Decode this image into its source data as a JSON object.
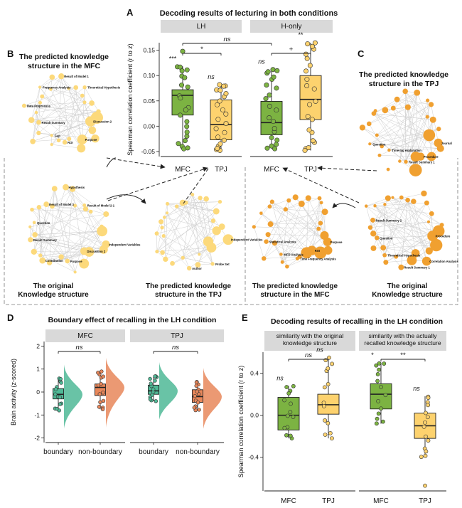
{
  "panels": {
    "A": {
      "letter": "A",
      "title": "Decoding results of lecturing in both conditions"
    },
    "B": {
      "letter": "B",
      "title_line1": "The predicted knowledge",
      "title_line2": "structure in the MFC",
      "orig_line1": "The original",
      "orig_line2": "Knowledge structure",
      "tpj_line1": "The predicted knowledge",
      "tpj_line2": "structure in the TPJ"
    },
    "C": {
      "letter": "C",
      "title_line1": "The predicted knowledge",
      "title_line2": "structure in the TPJ",
      "mfc_line1": "The predicted knowledge",
      "mfc_line2": "structure in the MFC",
      "orig_line1": "The original",
      "orig_line2": "Knowledge structure"
    },
    "D": {
      "letter": "D",
      "title": "Boundary effect of recalling in the LH condition"
    },
    "E": {
      "letter": "E",
      "title": "Decoding results of recalling in the LH condition"
    }
  },
  "network_labels": {
    "b_mfc": [
      "Discussion 2",
      "Purpose",
      "ROI",
      "Gap",
      "Result Summary",
      "Data Preprocess",
      "Frequency Analysis",
      "Result of Model 1",
      "Theoretical Hypothesis"
    ],
    "b_orig": [
      "Independent Variables",
      "Discussion 2",
      "Purpose",
      "Contribution",
      "Result Summary",
      "Question",
      "Result of Model 3",
      "Hypothesis",
      "Result of Model 2-1"
    ],
    "b_tpj": [
      "Independent Variables",
      "Probe Set",
      "Author"
    ],
    "c_tpj": [
      "Journal",
      "Procedure",
      "Result Summary 1",
      "Time-lag explanation",
      "Question"
    ],
    "c_mfc": [
      "Purpose",
      "ROI",
      "Time Frequency Analysis",
      "MFD Analysis",
      "Statistical Analysis"
    ],
    "c_orig": [
      "Procedure",
      "Correlation Analysis",
      "Result Summary 1",
      "Theoretical Hypothesis",
      "Question",
      "Result Summary 2"
    ]
  },
  "chart_data": [
    {
      "id": "A",
      "type": "box",
      "title": "Decoding results of lecturing in both conditions",
      "facets": [
        "LH",
        "H-only"
      ],
      "categories": [
        "MFC",
        "TPJ",
        "MFC",
        "TPJ"
      ],
      "ylabel": "Spearman correlation coefficient (r to z)",
      "ylim": [
        -0.06,
        0.165
      ],
      "yticks": [
        "-0.05",
        "0.00",
        "0.05",
        "0.10",
        "0.15"
      ],
      "yticks_values": [
        -0.05,
        0.0,
        0.05,
        0.1,
        0.15
      ],
      "colors": [
        "#7cb342",
        "#fdd26e",
        "#7cb342",
        "#fdd26e"
      ],
      "boxes": [
        {
          "facet": "LH",
          "cat": "MFC",
          "min": -0.045,
          "q1": 0.022,
          "median": 0.061,
          "q3": 0.072,
          "max": 0.118,
          "outliers": [
            0.148
          ],
          "sig": "***"
        },
        {
          "facet": "LH",
          "cat": "TPJ",
          "min": -0.048,
          "q1": -0.027,
          "median": 0.003,
          "q3": 0.052,
          "max": 0.082,
          "outliers": [],
          "sig": "ns"
        },
        {
          "facet": "H-only",
          "cat": "MFC",
          "min": -0.045,
          "q1": -0.017,
          "median": 0.007,
          "q3": 0.049,
          "max": 0.112,
          "outliers": [],
          "sig": "ns"
        },
        {
          "facet": "H-only",
          "cat": "TPJ",
          "min": -0.048,
          "q1": 0.013,
          "median": 0.053,
          "q3": 0.1,
          "max": 0.165,
          "outliers": [],
          "sig": "**"
        }
      ],
      "comparisons": [
        {
          "label": "*",
          "from": 0,
          "to": 1
        },
        {
          "label": "+",
          "from": 2,
          "to": 3
        },
        {
          "label": "ns",
          "from": 0,
          "to": 2
        }
      ]
    },
    {
      "id": "D",
      "type": "box",
      "title": "Boundary effect of recalling in the LH condition",
      "facets": [
        "MFC",
        "TPJ"
      ],
      "categories": [
        "boundary",
        "non-boundary",
        "boundary",
        "non-boundary"
      ],
      "ylabel": "Brain activity (z-scored)",
      "ylim": [
        -2.2,
        2.2
      ],
      "yticks": [
        "-2",
        "-1",
        "0",
        "1",
        "2"
      ],
      "yticks_values": [
        -2,
        -1,
        0,
        1,
        2
      ],
      "colors": [
        "#4fb996",
        "#e8875a",
        "#4fb996",
        "#e8875a"
      ],
      "boxes": [
        {
          "facet": "MFC",
          "cat": "boundary",
          "min": -0.8,
          "q1": -0.3,
          "median": -0.1,
          "q3": 0.15,
          "max": 0.6,
          "sig": ""
        },
        {
          "facet": "MFC",
          "cat": "non-boundary",
          "min": -0.75,
          "q1": -0.15,
          "median": 0.2,
          "q3": 0.35,
          "max": 0.9,
          "sig": ""
        },
        {
          "facet": "TPJ",
          "cat": "boundary",
          "min": -0.4,
          "q1": -0.1,
          "median": 0.05,
          "q3": 0.3,
          "max": 0.7,
          "sig": ""
        },
        {
          "facet": "TPJ",
          "cat": "non-boundary",
          "min": -0.8,
          "q1": -0.45,
          "median": -0.2,
          "q3": 0.1,
          "max": 0.45,
          "sig": ""
        }
      ],
      "comparisons": [
        {
          "label": "ns",
          "from": 0,
          "to": 1
        },
        {
          "label": "ns",
          "from": 2,
          "to": 3
        }
      ]
    },
    {
      "id": "E",
      "type": "box",
      "title": "Decoding results of recalling in the LH condition",
      "facets": [
        "similarity with the original knowledge structure",
        "similarity with the actually recalled knowledge structure"
      ],
      "facet_lines": [
        [
          "similarity with the original",
          "knowledge structure"
        ],
        [
          "similarity with the actually",
          "recalled knowledge structure"
        ]
      ],
      "categories": [
        "MFC",
        "TPJ",
        "MFC",
        "TPJ"
      ],
      "ylabel": "Spearman correlation coefficient (r to z)",
      "ylim": [
        -0.72,
        0.6
      ],
      "yticks": [
        "-0.4",
        "0.0",
        "0.4"
      ],
      "yticks_values": [
        -0.4,
        0.0,
        0.4
      ],
      "colors": [
        "#7cb342",
        "#fdd26e",
        "#7cb342",
        "#fdd26e"
      ],
      "boxes": [
        {
          "facet": 0,
          "cat": "MFC",
          "min": -0.22,
          "q1": -0.14,
          "median": 0.0,
          "q3": 0.17,
          "max": 0.28,
          "sig": "ns"
        },
        {
          "facet": 0,
          "cat": "TPJ",
          "min": -0.22,
          "q1": 0.01,
          "median": 0.1,
          "q3": 0.2,
          "max": 0.55,
          "sig": "ns"
        },
        {
          "facet": 1,
          "cat": "MFC",
          "min": -0.08,
          "q1": 0.06,
          "median": 0.2,
          "q3": 0.3,
          "max": 0.5,
          "sig": "*"
        },
        {
          "facet": 1,
          "cat": "TPJ",
          "min": -0.4,
          "q1": -0.22,
          "median": -0.1,
          "q3": 0.02,
          "max": 0.18,
          "outliers": [
            -0.67
          ],
          "sig": "ns"
        }
      ],
      "comparisons": [
        {
          "label": "ns",
          "from": 0,
          "to": 1
        },
        {
          "label": "**",
          "from": 2,
          "to": 3
        }
      ]
    }
  ]
}
